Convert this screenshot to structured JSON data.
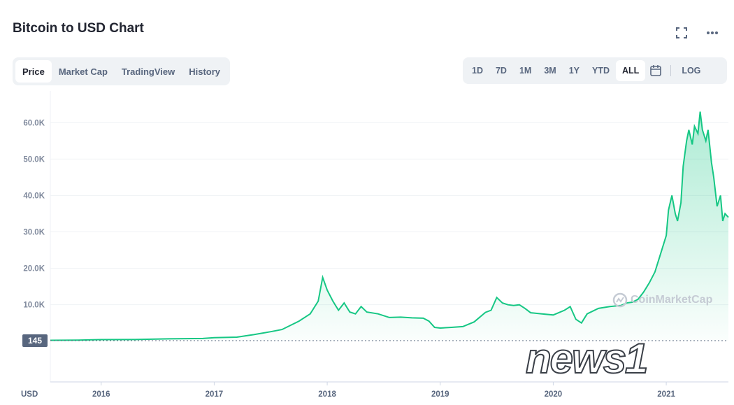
{
  "header": {
    "title": "Bitcoin to USD Chart"
  },
  "tabs": [
    "Price",
    "Market Cap",
    "TradingView",
    "History"
  ],
  "active_tab": "Price",
  "ranges": [
    "1D",
    "7D",
    "1M",
    "3M",
    "1Y",
    "YTD",
    "ALL"
  ],
  "active_range": "ALL",
  "log_label": "LOG",
  "icons": {
    "fullscreen": "expand-icon",
    "more": "more-icon",
    "calendar": "calendar-icon"
  },
  "colors": {
    "line": "#16c784",
    "accent_bg": "#eff2f5",
    "baseline_tag": "#58667e"
  },
  "watermark": "CoinMarketCap",
  "news_logo": "news1",
  "chart_data": {
    "type": "area",
    "currency_label": "USD",
    "baseline_label": "145",
    "yticks": [
      "60.0K",
      "50.0K",
      "40.0K",
      "30.0K",
      "20.0K",
      "10.0K"
    ],
    "ytick_values": [
      60000,
      50000,
      40000,
      30000,
      20000,
      10000
    ],
    "xticks": [
      "2016",
      "2017",
      "2018",
      "2019",
      "2020",
      "2021"
    ],
    "xlim": [
      2015.55,
      2021.55
    ],
    "ylim": [
      145,
      66000
    ],
    "grid": true,
    "x": [
      2015.55,
      2015.8,
      2016.0,
      2016.3,
      2016.6,
      2016.9,
      2017.0,
      2017.2,
      2017.35,
      2017.5,
      2017.6,
      2017.75,
      2017.85,
      2017.92,
      2017.96,
      2018.0,
      2018.05,
      2018.1,
      2018.15,
      2018.2,
      2018.25,
      2018.3,
      2018.35,
      2018.45,
      2018.55,
      2018.65,
      2018.75,
      2018.85,
      2018.9,
      2018.95,
      2019.0,
      2019.1,
      2019.2,
      2019.3,
      2019.4,
      2019.45,
      2019.5,
      2019.55,
      2019.6,
      2019.65,
      2019.7,
      2019.75,
      2019.8,
      2019.9,
      2020.0,
      2020.1,
      2020.15,
      2020.2,
      2020.25,
      2020.3,
      2020.4,
      2020.5,
      2020.6,
      2020.65,
      2020.7,
      2020.75,
      2020.8,
      2020.85,
      2020.9,
      2020.95,
      2021.0,
      2021.02,
      2021.05,
      2021.08,
      2021.1,
      2021.13,
      2021.15,
      2021.18,
      2021.2,
      2021.23,
      2021.25,
      2021.28,
      2021.3,
      2021.32,
      2021.35,
      2021.37,
      2021.4,
      2021.42,
      2021.45,
      2021.48,
      2021.5,
      2021.52,
      2021.55
    ],
    "values": [
      250,
      300,
      430,
      450,
      650,
      740,
      960,
      1100,
      1800,
      2600,
      3200,
      5500,
      7500,
      11000,
      17500,
      14000,
      11000,
      8500,
      10500,
      8000,
      7500,
      9500,
      8000,
      7500,
      6500,
      6600,
      6400,
      6300,
      5500,
      3800,
      3600,
      3800,
      4000,
      5300,
      7900,
      8500,
      12000,
      10500,
      10000,
      9800,
      10000,
      9000,
      7800,
      7500,
      7200,
      8500,
      9500,
      6000,
      5000,
      7500,
      9000,
      9500,
      9800,
      10500,
      10700,
      11500,
      13500,
      16000,
      19000,
      24000,
      29000,
      36000,
      40000,
      35000,
      33000,
      38000,
      48000,
      55000,
      58000,
      54000,
      59000,
      57000,
      63000,
      58000,
      55000,
      58000,
      49000,
      45000,
      37000,
      40000,
      33000,
      35000,
      34000
    ]
  }
}
